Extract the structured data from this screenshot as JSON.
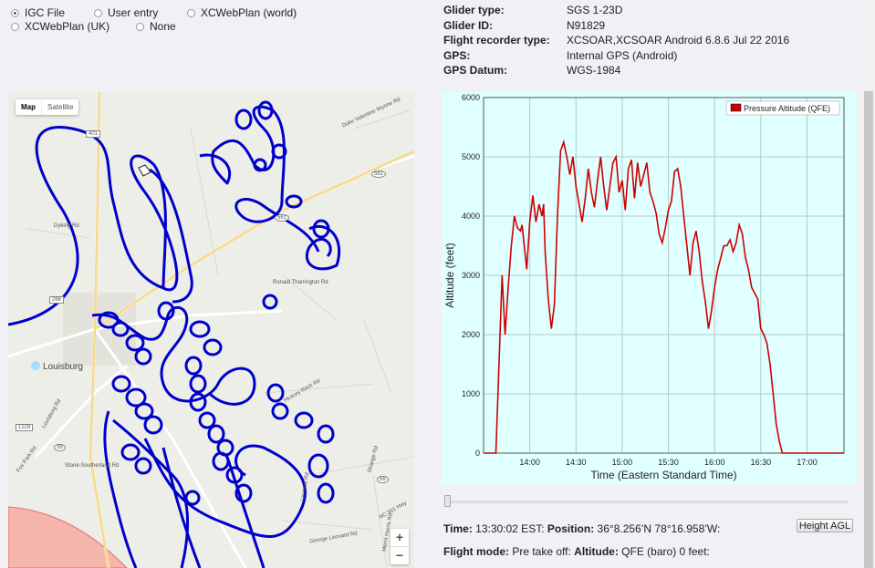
{
  "source_options": [
    {
      "label": "IGC File",
      "selected": true
    },
    {
      "label": "User entry",
      "selected": false
    },
    {
      "label": "XCWebPlan (world)",
      "selected": false
    },
    {
      "label": "XCWebPlan (UK)",
      "selected": false
    },
    {
      "label": "None",
      "selected": false
    }
  ],
  "flight_info": [
    {
      "key": "Glider type:",
      "value": "SGS 1-23D"
    },
    {
      "key": "Glider ID:",
      "value": "N91829"
    },
    {
      "key": "Flight recorder type:",
      "value": "XCSOAR,XCSOAR Android 6.8.6 Jul 22 2016"
    },
    {
      "key": "GPS:",
      "value": "Internal GPS (Android)"
    },
    {
      "key": "GPS Datum:",
      "value": "WGS-1984"
    }
  ],
  "map": {
    "tabs": {
      "map": "Map",
      "satellite": "Satellite"
    },
    "zoom_in": "+",
    "zoom_out": "−",
    "labels": {
      "town": "Louisburg",
      "dyking": "Dyking Rd",
      "duke": "Duke Valentine Wynne Rd",
      "ronald": "Ronald Tharrington Rd",
      "hickory": "Hickory Rock Rd",
      "stone": "Stone-Southerland Rd",
      "george": "George Leonard Rd",
      "louisburg_rd": "Louisburg Rd",
      "strange": "Strange Rd",
      "leonard": "Leonard Rd",
      "nc561": "NC 561 Hwy",
      "merritt": "Merrit Harris Rd",
      "fox": "Fox Park Rd",
      "r401": "401",
      "r561": "561",
      "r561b": "561",
      "r266": "266",
      "r1229": "1229",
      "r39": "39",
      "r56": "56"
    },
    "colors": {
      "track": "#0000cc",
      "water": "#aadaff",
      "restricted": "#f4a7a0"
    }
  },
  "chart_data": {
    "type": "line",
    "xlabel": "Time (Eastern Standard Time)",
    "ylabel": "Altitude (feet)",
    "x_tick_labels": [
      "14:00",
      "14:30",
      "15:00",
      "15:30",
      "16:00",
      "16:30",
      "17:00"
    ],
    "y_tick_labels": [
      "0",
      "1000",
      "2000",
      "3000",
      "4000",
      "5000",
      "6000"
    ],
    "ylim": [
      0,
      6000
    ],
    "grid": true,
    "legend_position": "top-right",
    "background": "#e0ffff",
    "series": [
      {
        "name": "Pressure Altitude (QFE)",
        "color": "#cc0000",
        "x_unit_note": "minutes after 13:00",
        "x": [
          30,
          34,
          38,
          40,
          42,
          44,
          46,
          48,
          50,
          52,
          54,
          55,
          56,
          58,
          60,
          62,
          64,
          66,
          68,
          69,
          70,
          72,
          74,
          76,
          78,
          80,
          82,
          84,
          86,
          88,
          90,
          92,
          94,
          96,
          98,
          100,
          102,
          104,
          106,
          108,
          110,
          112,
          114,
          116,
          118,
          120,
          122,
          124,
          126,
          128,
          130,
          132,
          134,
          136,
          138,
          140,
          142,
          144,
          146,
          148,
          150,
          152,
          154,
          156,
          158,
          160,
          162,
          164,
          166,
          168,
          170,
          172,
          174,
          176,
          178,
          180,
          182,
          184,
          186,
          188,
          190,
          192,
          194,
          196,
          198,
          200,
          202,
          204,
          206,
          208,
          210,
          212,
          214,
          216,
          218,
          220,
          222,
          224,
          226,
          228,
          230,
          232,
          234,
          236,
          238,
          240,
          242,
          244,
          246,
          248,
          250,
          252,
          254,
          256,
          258,
          260,
          262,
          264
        ],
        "y": [
          0,
          0,
          0,
          1500,
          3000,
          2000,
          2800,
          3500,
          4000,
          3800,
          3750,
          3850,
          3600,
          3100,
          3900,
          4350,
          3900,
          4200,
          4000,
          4200,
          3400,
          2600,
          2100,
          2500,
          4000,
          5100,
          5250,
          5000,
          4700,
          5000,
          4500,
          4200,
          3900,
          4300,
          4800,
          4400,
          4150,
          4600,
          5000,
          4500,
          4100,
          4500,
          4900,
          5000,
          4400,
          4600,
          4100,
          4800,
          4950,
          4300,
          4900,
          4500,
          4700,
          4900,
          4400,
          4250,
          4050,
          3700,
          3550,
          3800,
          4100,
          4250,
          4750,
          4800,
          4500,
          4000,
          3500,
          3000,
          3550,
          3750,
          3400,
          2900,
          2550,
          2100,
          2400,
          2800,
          3100,
          3300,
          3500,
          3500,
          3600,
          3400,
          3550,
          3850,
          3700,
          3300,
          3100,
          2800,
          2700,
          2600,
          2100,
          2000,
          1850,
          1500,
          1000,
          500,
          200,
          0,
          0,
          0,
          0,
          0,
          0,
          0,
          0,
          0,
          0,
          0,
          0,
          0,
          0,
          0,
          0,
          0,
          0,
          0,
          0,
          0
        ]
      }
    ]
  },
  "status": {
    "time_label": "Time:",
    "time_value": "13:30:02 EST:",
    "pos_label": "Position:",
    "pos_value": "36°8.256’N 78°16.958’W:",
    "mode_label": "Flight mode:",
    "mode_value": "Pre take off:",
    "alt_label": "Altitude:",
    "alt_value": "QFE (baro) 0 feet:",
    "button": "Height AGL"
  }
}
